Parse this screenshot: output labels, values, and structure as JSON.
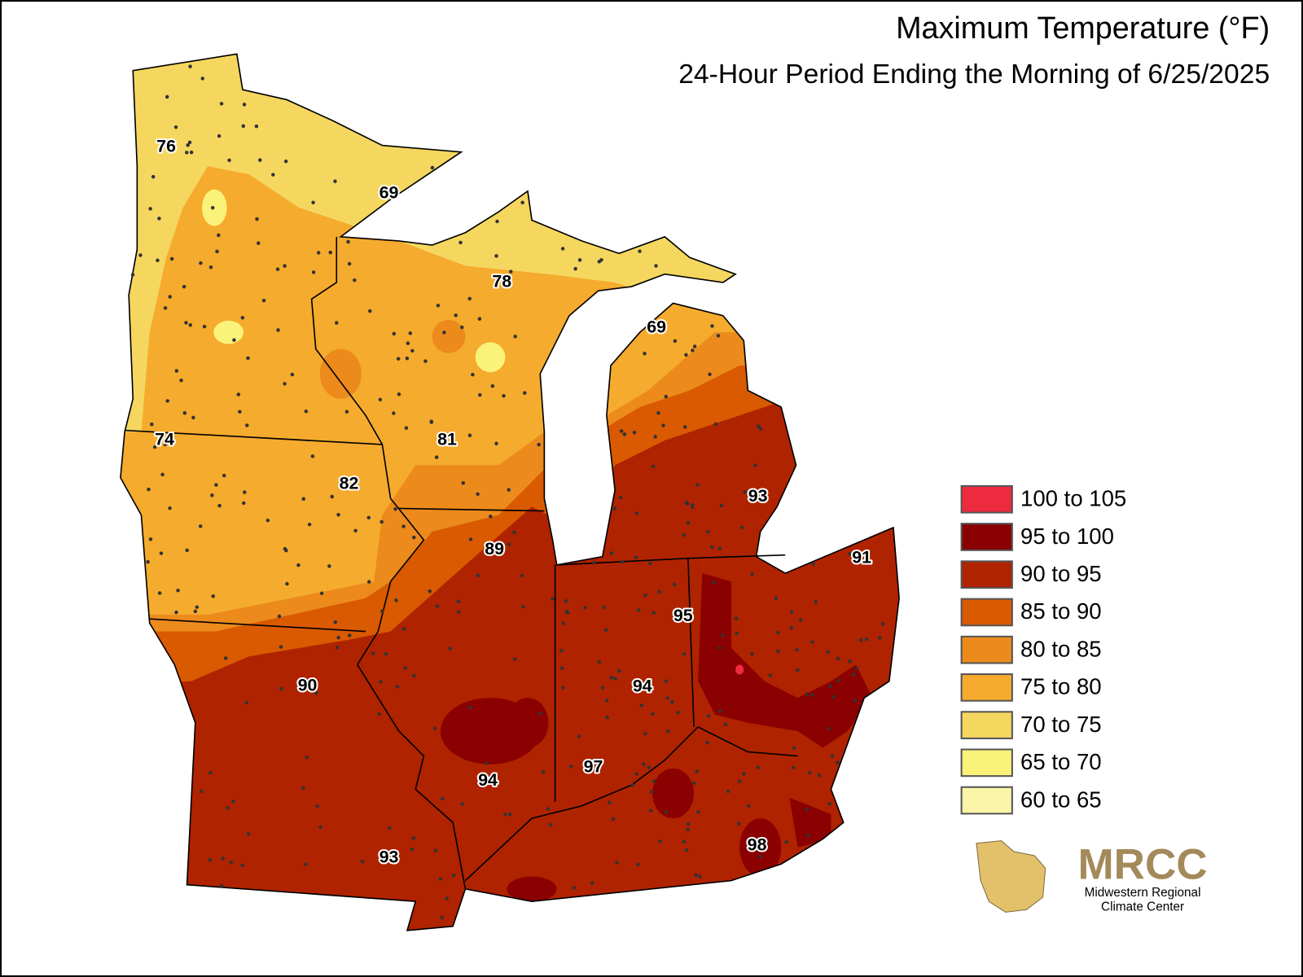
{
  "title": "Maximum Temperature (°F)",
  "subtitle": "24-Hour Period Ending the Morning of 6/25/2025",
  "legend": [
    {
      "label": "100 to 105",
      "color": "#ee2a3f"
    },
    {
      "label": "95 to 100",
      "color": "#8b0000"
    },
    {
      "label": "90 to 95",
      "color": "#b02300"
    },
    {
      "label": "85 to 90",
      "color": "#d95a00"
    },
    {
      "label": "80 to 85",
      "color": "#ec8a1c"
    },
    {
      "label": "75 to 80",
      "color": "#f5ab2d"
    },
    {
      "label": "70 to 75",
      "color": "#f5d760"
    },
    {
      "label": "65 to 70",
      "color": "#fbf27a"
    },
    {
      "label": "60 to 65",
      "color": "#fbf5a8"
    }
  ],
  "station_labels": [
    76,
    69,
    78,
    69,
    74,
    81,
    82,
    89,
    93,
    91,
    95,
    90,
    94,
    97,
    94,
    98,
    93
  ],
  "logo": {
    "name": "MRCC",
    "line1": "Midwestern Regional",
    "line2": "Climate Center"
  }
}
